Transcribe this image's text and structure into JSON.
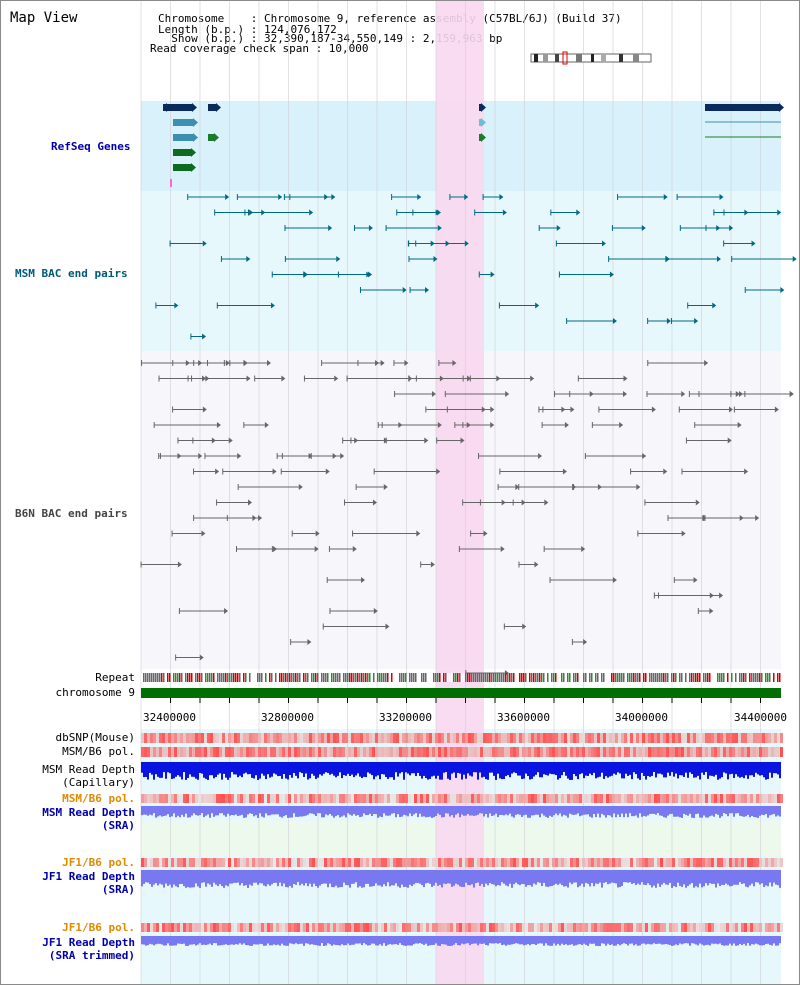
{
  "header": {
    "title": "Map View",
    "info_lines": [
      "Chromosome    : Chromosome 9, reference assembly (C57BL/6J) (Build 37)",
      "Length (b.p.) : 124,076,172",
      "  Show (b.p.) : 32,390,187-34,550,149 : 2,159,963 bp",
      "Read coverage check span : 10,000"
    ]
  },
  "tracks": {
    "refseq_label": "RefSeq Genes",
    "msm_bac_label": "MSM BAC end pairs",
    "b6n_bac_label": "B6N BAC end pairs",
    "repeat_label": "Repeat",
    "chromosome_label": "chromosome 9",
    "dbsnp_label": "dbSNP(Mouse)",
    "msm_b6_pol_label": "MSM/B6 pol.",
    "msm_read_depth_cap_label_1": "MSM Read Depth",
    "msm_read_depth_cap_label_2": "(Capillary)",
    "msm_b6_pol_sra_label": "MSM/B6 pol.",
    "msm_read_depth_sra_label_1": "MSM Read Depth",
    "msm_read_depth_sra_label_2": "(SRA)",
    "jf1_b6_pol_label": "JF1/B6 pol.",
    "jf1_read_depth_label_1": "JF1 Read Depth",
    "jf1_read_depth_label_2": "(SRA)",
    "jf1_b6_pol_trim_label": "JF1/B6 pol.",
    "jf1_read_depth_trim_label_1": "JF1 Read Depth",
    "jf1_read_depth_trim_label_2": "(SRA trimmed)"
  },
  "axis": {
    "ticks": [
      "32400000",
      "32800000",
      "33200000",
      "33600000",
      "34000000",
      "34400000"
    ]
  },
  "colors": {
    "refseq_bg": "#d9f1fa",
    "bac_bg": "#e6f8fb",
    "highlight": "#f8d8f0",
    "chromosome": "#006e00",
    "msm_color": "#006a84",
    "b6n_color": "#666666",
    "label_blue": "#0000aa",
    "label_teal": "#005a78",
    "label_orange": "#e08a00",
    "depth_blue": "#0a14e0",
    "depth_light": "#7878f0"
  }
}
